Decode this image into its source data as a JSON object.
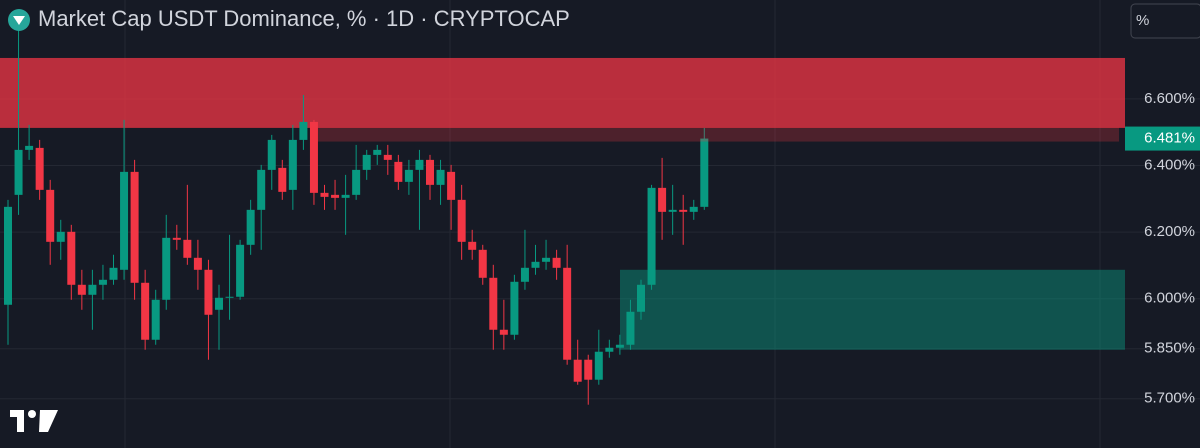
{
  "chart_data": {
    "type": "candlestick",
    "title": "Market Cap USDT Dominance, % · 1D · CRYPTOCAP",
    "scale_unit": "%",
    "ylim": [
      5.552,
      6.897
    ],
    "yticks": [
      {
        "value": 6.6,
        "label": "6.600%"
      },
      {
        "value": 6.4,
        "label": "6.400%"
      },
      {
        "value": 6.2,
        "label": "6.200%"
      },
      {
        "value": 6.0,
        "label": "6.000%"
      },
      {
        "value": 5.85,
        "label": "5.850%"
      },
      {
        "value": 5.7,
        "label": "5.700%"
      }
    ],
    "grid": true,
    "up_color": "#089981",
    "down_color": "#f23645",
    "last_price": {
      "value": 6.481,
      "label": "6.481%"
    },
    "zones": [
      {
        "from": 6.513,
        "to": 6.723,
        "color": "#f23645"
      },
      {
        "from": 5.847,
        "to": 6.087,
        "color": "#089981"
      }
    ],
    "open": [
      5.982,
      6.312,
      6.447,
      6.453,
      6.327,
      6.171,
      6.201,
      6.042,
      6.012,
      6.042,
      6.057,
      6.087,
      6.381,
      6.048,
      5.877,
      5.997,
      6.183,
      6.177,
      6.123,
      6.087,
      5.967,
      6.003,
      6.006,
      6.162,
      6.267,
      6.387,
      6.393,
      6.327,
      6.477,
      6.531,
      6.318,
      6.312,
      6.303,
      6.312,
      6.387,
      6.432,
      6.432,
      6.411,
      6.351,
      6.387,
      6.417,
      6.342,
      6.381,
      6.297,
      6.171,
      6.147,
      6.063,
      5.907,
      5.892,
      6.051,
      6.093,
      6.111,
      6.123,
      6.093,
      5.817,
      5.817,
      5.757,
      5.841,
      5.853,
      5.862,
      5.961,
      6.042,
      6.333,
      6.261,
      6.267,
      6.261,
      6.276
    ],
    "high": [
      6.297,
      6.822,
      6.522,
      6.477,
      6.357,
      6.237,
      6.222,
      6.087,
      6.087,
      6.102,
      6.132,
      6.537,
      6.417,
      6.087,
      6.027,
      6.252,
      6.222,
      6.342,
      6.177,
      6.117,
      6.042,
      6.192,
      6.177,
      6.297,
      6.402,
      6.492,
      6.417,
      6.522,
      6.612,
      6.537,
      6.342,
      6.357,
      6.372,
      6.462,
      6.447,
      6.462,
      6.462,
      6.432,
      6.417,
      6.447,
      6.432,
      6.417,
      6.402,
      6.342,
      6.207,
      6.162,
      6.102,
      5.997,
      6.072,
      6.207,
      6.162,
      6.177,
      6.147,
      6.162,
      5.877,
      5.832,
      5.907,
      5.877,
      5.892,
      5.997,
      6.057,
      6.342,
      6.423,
      6.342,
      6.312,
      6.297,
      6.513
    ],
    "low": [
      5.862,
      6.252,
      6.417,
      6.297,
      6.102,
      6.117,
      5.997,
      5.967,
      5.907,
      5.997,
      6.042,
      6.057,
      5.997,
      5.847,
      5.862,
      5.967,
      6.147,
      6.102,
      6.027,
      5.817,
      5.847,
      5.937,
      5.997,
      6.132,
      6.147,
      6.327,
      6.297,
      6.267,
      6.447,
      6.282,
      6.267,
      6.267,
      6.192,
      6.297,
      6.357,
      6.402,
      6.372,
      6.327,
      6.312,
      6.207,
      6.297,
      6.282,
      6.207,
      6.117,
      6.117,
      6.042,
      5.847,
      5.847,
      5.877,
      6.027,
      6.072,
      6.087,
      6.057,
      5.802,
      5.742,
      5.682,
      5.742,
      5.823,
      5.832,
      5.847,
      5.937,
      6.027,
      6.177,
      6.192,
      6.162,
      6.237,
      6.267
    ],
    "close": [
      6.276,
      6.447,
      6.459,
      6.327,
      6.171,
      6.201,
      6.042,
      6.012,
      6.042,
      6.057,
      6.093,
      6.381,
      6.048,
      5.877,
      5.997,
      6.183,
      6.177,
      6.123,
      6.087,
      5.952,
      6.003,
      6.006,
      6.162,
      6.267,
      6.387,
      6.477,
      6.321,
      6.477,
      6.531,
      6.318,
      6.306,
      6.303,
      6.312,
      6.387,
      6.432,
      6.447,
      6.417,
      6.351,
      6.387,
      6.417,
      6.342,
      6.387,
      6.297,
      6.171,
      6.147,
      6.063,
      5.907,
      5.892,
      6.051,
      6.093,
      6.111,
      6.123,
      6.093,
      5.817,
      5.751,
      5.757,
      5.841,
      5.853,
      5.862,
      5.961,
      6.042,
      6.333,
      6.261,
      6.267,
      6.261,
      6.276,
      6.481
    ]
  }
}
